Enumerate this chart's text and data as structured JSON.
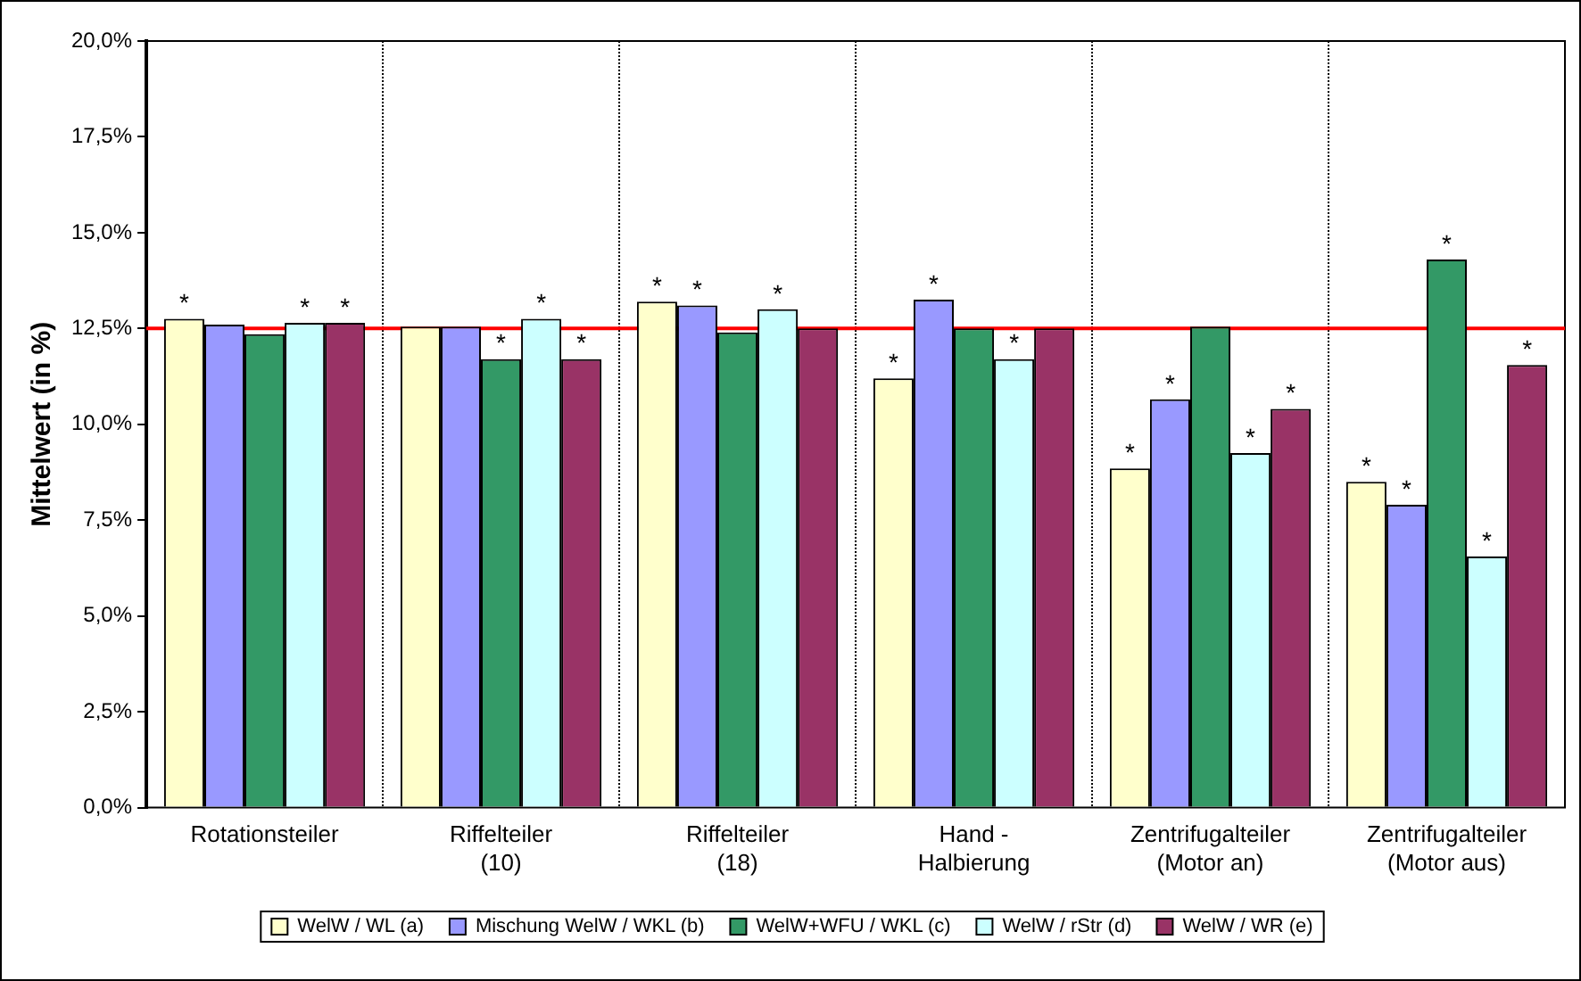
{
  "chart_data": {
    "type": "bar",
    "ylabel": "Mittelwert (in %)",
    "categories": [
      "Rotationsteiler",
      "Riffelteiler (10)",
      "Riffelteiler (18)",
      "Hand - Halbierung",
      "Zentrifugalteiler (Motor an)",
      "Zentrifugalteiler (Motor aus)"
    ],
    "series": [
      {
        "name": "WelW / WL (a)",
        "color": "#ffffcc",
        "values": [
          12.75,
          12.55,
          13.2,
          11.2,
          8.85,
          8.5
        ],
        "value_labels": [
          "*",
          null,
          "*",
          "*",
          "*",
          "*"
        ]
      },
      {
        "name": "Mischung WelW / WKL (b)",
        "color": "#9999ff",
        "values": [
          12.6,
          12.55,
          13.1,
          13.25,
          10.65,
          7.9
        ],
        "value_labels": [
          null,
          null,
          "*",
          "*",
          "*",
          "*"
        ]
      },
      {
        "name": "WelW+WFU / WKL (c)",
        "color": "#339966",
        "values": [
          12.35,
          11.7,
          12.4,
          12.5,
          12.55,
          14.3
        ],
        "value_labels": [
          null,
          "*",
          null,
          null,
          null,
          "*"
        ]
      },
      {
        "name": "WelW / rStr (d)",
        "color": "#ccffff",
        "values": [
          12.65,
          12.75,
          13.0,
          11.7,
          9.25,
          6.55
        ],
        "value_labels": [
          "*",
          "*",
          "*",
          "*",
          "*",
          "*"
        ]
      },
      {
        "name": "WelW / WR (e)",
        "color": "#993366",
        "values": [
          12.65,
          11.7,
          12.5,
          12.5,
          10.4,
          11.55
        ],
        "value_labels": [
          "*",
          "*",
          null,
          null,
          "*",
          "*"
        ]
      }
    ],
    "ylim": [
      0,
      20
    ],
    "yticks": [
      {
        "value": 0,
        "label": "0,0%"
      },
      {
        "value": 2.5,
        "label": "2,5%"
      },
      {
        "value": 5,
        "label": "5,0%"
      },
      {
        "value": 7.5,
        "label": "7,5%"
      },
      {
        "value": 10,
        "label": "10,0%"
      },
      {
        "value": 12.5,
        "label": "12,5%"
      },
      {
        "value": 15,
        "label": "15,0%"
      },
      {
        "value": 17.5,
        "label": "17,5%"
      },
      {
        "value": 20,
        "label": "20,0%"
      }
    ],
    "ref_lines": [
      {
        "axis": "y",
        "value": 12.5,
        "label": null,
        "color": "#ff0000"
      }
    ],
    "grid": false,
    "legend": "bottom"
  }
}
